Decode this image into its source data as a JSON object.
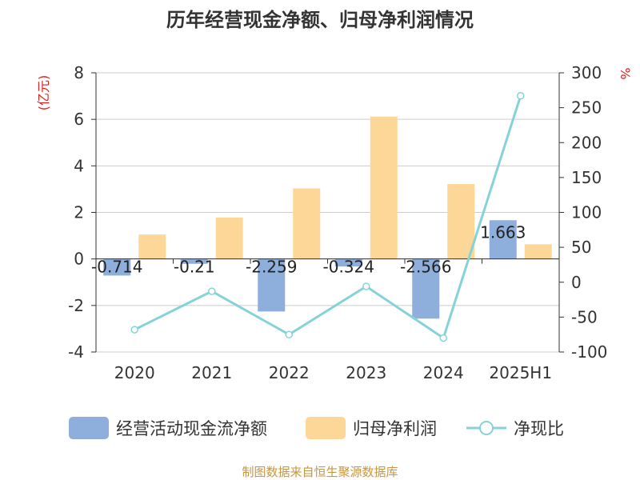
{
  "chart_data": {
    "type": "bar",
    "title": "历年经营现金净额、归母净利润情况",
    "categories": [
      "2020",
      "2021",
      "2022",
      "2023",
      "2024",
      "2025H1"
    ],
    "series": [
      {
        "name": "经营活动现金流净额",
        "type": "bar",
        "axis": "left",
        "color": "#8eaedc",
        "values": [
          -0.714,
          -0.21,
          -2.259,
          -0.324,
          -2.566,
          1.663
        ],
        "labels": [
          "-0.714",
          "-0.21",
          "-2.259",
          "-0.324",
          "-2.566",
          "1.663"
        ]
      },
      {
        "name": "归母净利润",
        "type": "bar",
        "axis": "left",
        "color": "#fdd797",
        "values": [
          1.05,
          1.78,
          3.03,
          6.12,
          3.22,
          0.63
        ]
      },
      {
        "name": "净现比",
        "type": "line",
        "axis": "right",
        "color": "#85d3d8",
        "values": [
          -68,
          -13,
          -75,
          -6,
          -80,
          267
        ]
      }
    ],
    "y_left": {
      "unit": "(亿元)",
      "ylim": [
        -4,
        8
      ],
      "ticks": [
        "8",
        "6",
        "4",
        "2",
        "0",
        "-2",
        "-4"
      ]
    },
    "y_right": {
      "unit": "%",
      "ylim": [
        -100,
        300
      ],
      "ticks": [
        "300",
        "250",
        "200",
        "150",
        "100",
        "50",
        "0",
        "-50",
        "-100"
      ]
    },
    "grid": true,
    "legend_position": "bottom",
    "source": "制图数据来自恒生聚源数据库"
  }
}
